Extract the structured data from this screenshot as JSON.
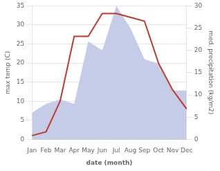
{
  "chart_data": {
    "type": "line",
    "categories": [
      "Jan",
      "Feb",
      "Mar",
      "Apr",
      "May",
      "Jun",
      "Jul",
      "Aug",
      "Sep",
      "Oct",
      "Nov",
      "Dec"
    ],
    "series": [
      {
        "type": "area",
        "color": "#c5cce8",
        "axis": "y2",
        "values": [
          6,
          8,
          9,
          8,
          22,
          20,
          30,
          25,
          18,
          17,
          11,
          11
        ]
      },
      {
        "type": "line",
        "color": "#c0392b",
        "values": [
          1,
          2,
          10,
          27,
          27,
          33,
          33,
          32,
          31,
          20,
          13,
          8
        ]
      }
    ],
    "xlabel": "date (month)",
    "ylabel": "max temp (C)",
    "y2label": "med. precipitation (kg/m2)",
    "ylim": [
      0,
      35
    ],
    "yticks": [
      0,
      5,
      10,
      15,
      20,
      25,
      30,
      35
    ],
    "y2lim": [
      0,
      30
    ],
    "y2ticks": [
      0,
      5,
      10,
      15,
      20,
      25,
      30
    ],
    "grid": true
  }
}
